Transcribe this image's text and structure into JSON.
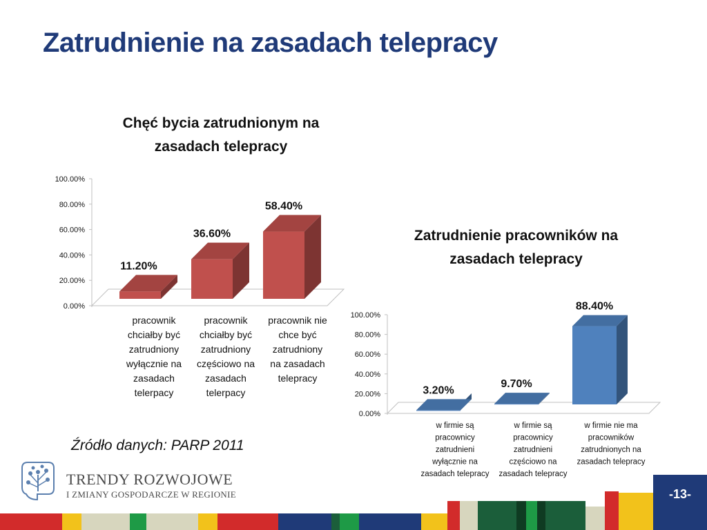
{
  "page": {
    "title": "Zatrudnienie na zasadach telepracy",
    "source": "Źródło danych:  PARP 2011",
    "logo_line1": "TRENDY ROZWOJOWE",
    "logo_line2": "I ZMIANY GOSPODARCZE W REGIONIE",
    "page_number": "-13-",
    "colors": {
      "title": "#1F3A78",
      "series1": "#C0504D",
      "series2": "#4F81BD",
      "page_box": "#1F3A78"
    },
    "icons": [
      "tree-logo-icon"
    ]
  },
  "chart_data": [
    {
      "type": "bar",
      "title_lines": [
        "Chęć bycia zatrudnionym na",
        "zasadach telepracy"
      ],
      "categories": [
        [
          "pracownik",
          "chciałby być",
          "zatrudniony",
          "wyłącznie na",
          "zasadach",
          "telerpacy"
        ],
        [
          "pracownik",
          "chciałby być",
          "zatrudniony",
          "częściowo na",
          "zasadach",
          "telerpacy"
        ],
        [
          "pracownik nie",
          "chce być",
          "zatrudniony",
          "na zasadach",
          "telepracy"
        ]
      ],
      "values": [
        11.2,
        36.6,
        58.4
      ],
      "value_labels": [
        "11.20%",
        "36.60%",
        "58.40%"
      ],
      "yticks": [
        "0.00%",
        "20.00%",
        "40.00%",
        "60.00%",
        "80.00%",
        "100.00%"
      ],
      "ylim": [
        0,
        100
      ],
      "grid": false,
      "legend": "none",
      "color": "#C0504D"
    },
    {
      "type": "bar",
      "title_lines": [
        "Zatrudnienie pracowników na",
        "zasadach telepracy"
      ],
      "categories": [
        [
          "w firmie są",
          "pracownicy",
          "zatrudnieni",
          "wyłącznie na",
          "zasadach telepracy"
        ],
        [
          "w firmie są",
          "pracownicy",
          "zatrudnieni",
          "częściowo na",
          "zasadach telepracy"
        ],
        [
          "w firmie nie ma",
          "pracowników",
          "zatrudnionych na",
          "zasadach telepracy"
        ]
      ],
      "values": [
        3.2,
        9.7,
        88.4
      ],
      "value_labels": [
        "3.20%",
        "9.70%",
        "88.40%"
      ],
      "yticks": [
        "0.00%",
        "20.00%",
        "40.00%",
        "60.00%",
        "80.00%",
        "100.00%"
      ],
      "ylim": [
        0,
        100
      ],
      "grid": false,
      "legend": "none",
      "color": "#4F81BD"
    }
  ]
}
